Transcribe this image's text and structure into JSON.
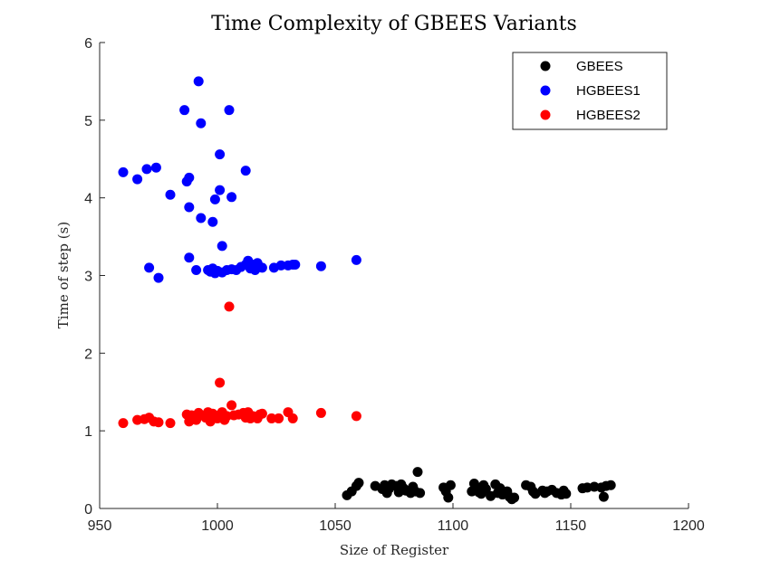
{
  "chart_data": {
    "type": "scatter",
    "title": "Time Complexity of GBEES Variants",
    "xlabel": "Size of Register",
    "ylabel": "Time of step (s)",
    "xlim": [
      950,
      1200
    ],
    "ylim": [
      0,
      6
    ],
    "xticks": [
      950,
      1000,
      1050,
      1100,
      1150,
      1200
    ],
    "yticks": [
      0,
      1,
      2,
      3,
      4,
      5,
      6
    ],
    "grid": false,
    "legend_position": "top-right",
    "series": [
      {
        "name": "GBEES",
        "color": "#000000",
        "points": [
          [
            1055,
            0.17
          ],
          [
            1057,
            0.22
          ],
          [
            1059,
            0.29
          ],
          [
            1060,
            0.33
          ],
          [
            1067,
            0.29
          ],
          [
            1070,
            0.25
          ],
          [
            1071,
            0.3
          ],
          [
            1072,
            0.2
          ],
          [
            1073,
            0.26
          ],
          [
            1074,
            0.31
          ],
          [
            1076,
            0.29
          ],
          [
            1077,
            0.21
          ],
          [
            1078,
            0.31
          ],
          [
            1079,
            0.26
          ],
          [
            1080,
            0.23
          ],
          [
            1082,
            0.2
          ],
          [
            1083,
            0.28
          ],
          [
            1084,
            0.22
          ],
          [
            1085,
            0.47
          ],
          [
            1086,
            0.2
          ],
          [
            1096,
            0.27
          ],
          [
            1097,
            0.22
          ],
          [
            1098,
            0.14
          ],
          [
            1099,
            0.3
          ],
          [
            1108,
            0.22
          ],
          [
            1109,
            0.32
          ],
          [
            1110,
            0.27
          ],
          [
            1111,
            0.21
          ],
          [
            1112,
            0.19
          ],
          [
            1113,
            0.3
          ],
          [
            1114,
            0.25
          ],
          [
            1116,
            0.16
          ],
          [
            1118,
            0.31
          ],
          [
            1119,
            0.2
          ],
          [
            1120,
            0.26
          ],
          [
            1121,
            0.18
          ],
          [
            1123,
            0.22
          ],
          [
            1124,
            0.15
          ],
          [
            1125,
            0.12
          ],
          [
            1126,
            0.14
          ],
          [
            1131,
            0.3
          ],
          [
            1133,
            0.28
          ],
          [
            1134,
            0.22
          ],
          [
            1135,
            0.19
          ],
          [
            1138,
            0.23
          ],
          [
            1139,
            0.2
          ],
          [
            1140,
            0.22
          ],
          [
            1142,
            0.24
          ],
          [
            1144,
            0.2
          ],
          [
            1146,
            0.18
          ],
          [
            1147,
            0.23
          ],
          [
            1148,
            0.19
          ],
          [
            1155,
            0.26
          ],
          [
            1157,
            0.27
          ],
          [
            1160,
            0.28
          ],
          [
            1163,
            0.27
          ],
          [
            1164,
            0.15
          ],
          [
            1165,
            0.29
          ],
          [
            1167,
            0.3
          ]
        ]
      },
      {
        "name": "HGBEES1",
        "color": "#0000ff",
        "points": [
          [
            960,
            4.33
          ],
          [
            966,
            4.24
          ],
          [
            970,
            4.37
          ],
          [
            971,
            3.1
          ],
          [
            974,
            4.39
          ],
          [
            975,
            2.97
          ],
          [
            980,
            4.04
          ],
          [
            986,
            5.13
          ],
          [
            987,
            4.21
          ],
          [
            988,
            3.23
          ],
          [
            988,
            4.26
          ],
          [
            988,
            3.88
          ],
          [
            991,
            3.07
          ],
          [
            992,
            5.5
          ],
          [
            993,
            3.74
          ],
          [
            993,
            4.96
          ],
          [
            996,
            3.07
          ],
          [
            997,
            3.05
          ],
          [
            998,
            3.69
          ],
          [
            998,
            3.09
          ],
          [
            999,
            3.98
          ],
          [
            999,
            3.03
          ],
          [
            1000,
            3.06
          ],
          [
            1001,
            4.56
          ],
          [
            1001,
            4.1
          ],
          [
            1002,
            3.38
          ],
          [
            1002,
            3.04
          ],
          [
            1004,
            3.07
          ],
          [
            1005,
            5.13
          ],
          [
            1006,
            4.01
          ],
          [
            1006,
            3.08
          ],
          [
            1008,
            3.07
          ],
          [
            1010,
            3.11
          ],
          [
            1012,
            3.14
          ],
          [
            1012,
            4.35
          ],
          [
            1013,
            3.19
          ],
          [
            1014,
            3.09
          ],
          [
            1015,
            3.14
          ],
          [
            1016,
            3.07
          ],
          [
            1017,
            3.16
          ],
          [
            1018,
            3.11
          ],
          [
            1019,
            3.1
          ],
          [
            1024,
            3.1
          ],
          [
            1027,
            3.13
          ],
          [
            1030,
            3.13
          ],
          [
            1032,
            3.14
          ],
          [
            1033,
            3.14
          ],
          [
            1044,
            3.12
          ],
          [
            1059,
            3.2
          ]
        ]
      },
      {
        "name": "HGBEES2",
        "color": "#ff0000",
        "points": [
          [
            960,
            1.1
          ],
          [
            966,
            1.14
          ],
          [
            969,
            1.15
          ],
          [
            971,
            1.17
          ],
          [
            973,
            1.12
          ],
          [
            975,
            1.11
          ],
          [
            980,
            1.1
          ],
          [
            987,
            1.21
          ],
          [
            988,
            1.12
          ],
          [
            989,
            1.2
          ],
          [
            990,
            1.16
          ],
          [
            991,
            1.14
          ],
          [
            992,
            1.23
          ],
          [
            993,
            1.2
          ],
          [
            995,
            1.17
          ],
          [
            996,
            1.24
          ],
          [
            997,
            1.12
          ],
          [
            998,
            1.22
          ],
          [
            999,
            1.2
          ],
          [
            1000,
            1.16
          ],
          [
            1001,
            1.62
          ],
          [
            1002,
            1.24
          ],
          [
            1003,
            1.14
          ],
          [
            1004,
            1.19
          ],
          [
            1005,
            2.6
          ],
          [
            1006,
            1.33
          ],
          [
            1007,
            1.2
          ],
          [
            1009,
            1.21
          ],
          [
            1011,
            1.23
          ],
          [
            1012,
            1.17
          ],
          [
            1013,
            1.24
          ],
          [
            1014,
            1.16
          ],
          [
            1015,
            1.19
          ],
          [
            1017,
            1.16
          ],
          [
            1018,
            1.21
          ],
          [
            1019,
            1.22
          ],
          [
            1023,
            1.16
          ],
          [
            1026,
            1.16
          ],
          [
            1030,
            1.24
          ],
          [
            1032,
            1.16
          ],
          [
            1044,
            1.23
          ],
          [
            1059,
            1.19
          ]
        ]
      }
    ]
  }
}
